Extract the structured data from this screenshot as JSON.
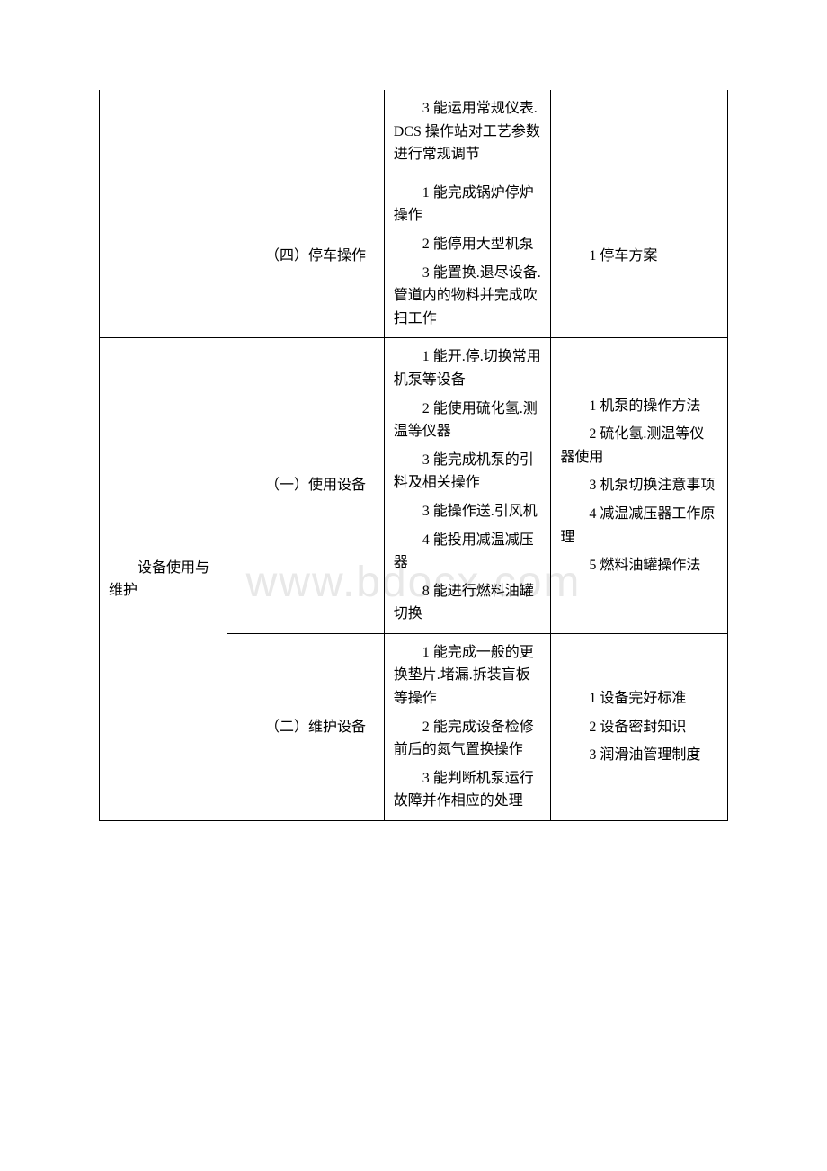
{
  "watermark": "www.bdocx.com",
  "table": {
    "font_family": "SimSun",
    "font_size": 16,
    "border_color": "#000000",
    "background_color": "#ffffff",
    "rows": [
      {
        "c1": "",
        "c2": "",
        "c3_items": [
          "3 能运用常规仪表. DCS 操作站对工艺参数进行常规调节"
        ],
        "c4_items": []
      },
      {
        "c1": "",
        "c2": "（四）停车操作",
        "c3_items": [
          "1 能完成锅炉停炉操作",
          "2 能停用大型机泵",
          "3 能置换.退尽设备.管道内的物料并完成吹扫工作"
        ],
        "c4_items": [
          "1 停车方案"
        ]
      },
      {
        "c1": "设备使用与维护",
        "c2": "（一）使用设备",
        "c3_items": [
          "1 能开.停.切换常用机泵等设备",
          "2 能使用硫化氢.测温等仪器",
          "3 能完成机泵的引料及相关操作",
          "3 能操作送.引风机",
          "4 能投用减温减压器",
          "8 能进行燃料油罐切换"
        ],
        "c4_items": [
          "1 机泵的操作方法",
          "2 硫化氢.测温等仪器使用",
          "3 机泵切换注意事项",
          "4 减温减压器工作原理",
          "5 燃料油罐操作法"
        ]
      },
      {
        "c1": "",
        "c2": "（二）维护设备",
        "c3_items": [
          "1 能完成一般的更换垫片.堵漏.拆装盲板等操作",
          "2 能完成设备检修前后的氮气置换操作",
          "3 能判断机泵运行故障并作相应的处理"
        ],
        "c4_items": [
          "1 设备完好标准",
          "2 设备密封知识",
          "3 润滑油管理制度"
        ]
      }
    ]
  }
}
